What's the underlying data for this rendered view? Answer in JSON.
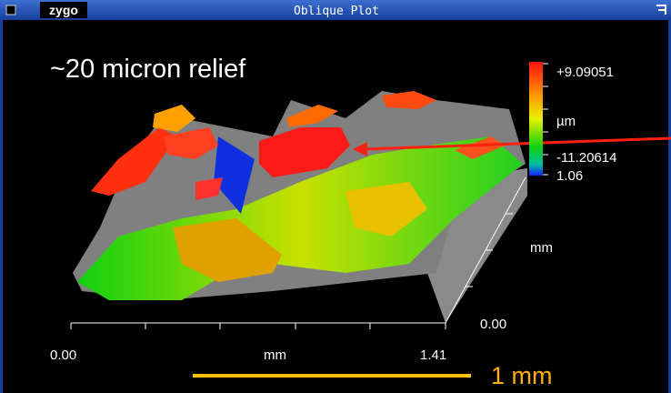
{
  "window": {
    "logo": "zygo",
    "title": "Oblique Plot"
  },
  "annotation": "~20 micron relief",
  "colorbar": {
    "max": "+9.09051",
    "unit": "µm",
    "min": "-11.20614"
  },
  "y_axis": {
    "max": "1.06",
    "label": "mm",
    "min": "0.00"
  },
  "x_axis": {
    "min": "0.00",
    "label": "mm",
    "max": "1.41"
  },
  "scale_bar": {
    "label": "1 mm"
  }
}
